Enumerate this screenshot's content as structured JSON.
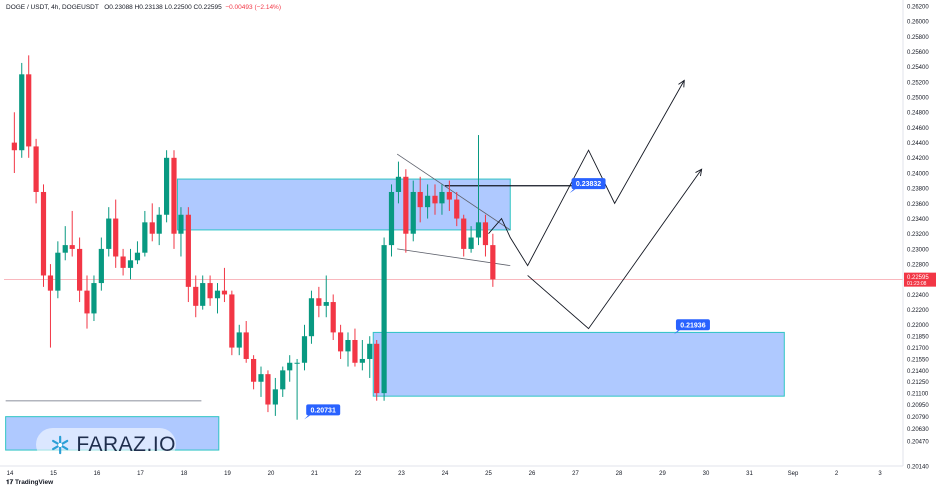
{
  "header": {
    "symbol": "DOGE / USDT, 4h, DOGEUSDT",
    "ohlc": "O0.23088  H0.23138  L0.22500  C0.22595",
    "change": "−0.00493 (−2.14%)"
  },
  "branding": {
    "tradingview": "TradingView",
    "watermark": "FARAZ.IO"
  },
  "colors": {
    "up": "#089981",
    "down": "#f23645",
    "zone_fill": "#6d9cff",
    "zone_border": "#2ec4c4",
    "label_bg": "#2962ff",
    "price_line": "#f7a1a8"
  },
  "chart_data": {
    "type": "candlestick",
    "ylim": [
      0.2014,
      0.262
    ],
    "y_ticks": [
      "0.26200",
      "0.26000",
      "0.25800",
      "0.25600",
      "0.25400",
      "0.25200",
      "0.25000",
      "0.24800",
      "0.24600",
      "0.24400",
      "0.24200",
      "0.24000",
      "0.23800",
      "0.23600",
      "0.23400",
      "0.23200",
      "0.23000",
      "0.22800",
      "0.22600",
      "0.22400",
      "0.22200",
      "0.22000",
      "0.21850",
      "0.21700",
      "0.21550",
      "0.21400",
      "0.21250",
      "0.21100",
      "0.20950",
      "0.20790",
      "0.20630",
      "0.20470",
      "0.20140"
    ],
    "x_labels": [
      "14",
      "15",
      "16",
      "17",
      "18",
      "19",
      "20",
      "21",
      "22",
      "23",
      "24",
      "25",
      "26",
      "27",
      "28",
      "29",
      "30",
      "31",
      "Sep",
      "2",
      "3"
    ],
    "current_price": {
      "value": "0.22595",
      "countdown": "01:23:08"
    },
    "candles": [
      {
        "d": 14.1,
        "o": 0.244,
        "h": 0.248,
        "l": 0.24,
        "c": 0.243
      },
      {
        "d": 14.27,
        "o": 0.243,
        "h": 0.2545,
        "l": 0.242,
        "c": 0.253
      },
      {
        "d": 14.43,
        "o": 0.253,
        "h": 0.2555,
        "l": 0.242,
        "c": 0.2435
      },
      {
        "d": 14.6,
        "o": 0.2435,
        "h": 0.2445,
        "l": 0.236,
        "c": 0.2375
      },
      {
        "d": 14.77,
        "o": 0.2375,
        "h": 0.2385,
        "l": 0.225,
        "c": 0.2265
      },
      {
        "d": 14.93,
        "o": 0.2265,
        "h": 0.228,
        "l": 0.217,
        "c": 0.2245
      },
      {
        "d": 15.1,
        "o": 0.2245,
        "h": 0.231,
        "l": 0.2235,
        "c": 0.2295
      },
      {
        "d": 15.27,
        "o": 0.2295,
        "h": 0.233,
        "l": 0.2285,
        "c": 0.2305
      },
      {
        "d": 15.43,
        "o": 0.2305,
        "h": 0.235,
        "l": 0.229,
        "c": 0.23
      },
      {
        "d": 15.6,
        "o": 0.23,
        "h": 0.2315,
        "l": 0.223,
        "c": 0.2245
      },
      {
        "d": 15.77,
        "o": 0.2245,
        "h": 0.2265,
        "l": 0.2195,
        "c": 0.2215
      },
      {
        "d": 15.93,
        "o": 0.2215,
        "h": 0.2265,
        "l": 0.2205,
        "c": 0.2255
      },
      {
        "d": 16.1,
        "o": 0.2255,
        "h": 0.2315,
        "l": 0.2245,
        "c": 0.23
      },
      {
        "d": 16.27,
        "o": 0.23,
        "h": 0.2355,
        "l": 0.229,
        "c": 0.234
      },
      {
        "d": 16.43,
        "o": 0.234,
        "h": 0.2365,
        "l": 0.2275,
        "c": 0.229
      },
      {
        "d": 16.6,
        "o": 0.229,
        "h": 0.23,
        "l": 0.2265,
        "c": 0.2275
      },
      {
        "d": 16.77,
        "o": 0.2275,
        "h": 0.23,
        "l": 0.226,
        "c": 0.2285
      },
      {
        "d": 16.93,
        "o": 0.2285,
        "h": 0.231,
        "l": 0.228,
        "c": 0.2295
      },
      {
        "d": 17.1,
        "o": 0.2295,
        "h": 0.235,
        "l": 0.229,
        "c": 0.2335
      },
      {
        "d": 17.27,
        "o": 0.2335,
        "h": 0.236,
        "l": 0.231,
        "c": 0.232
      },
      {
        "d": 17.43,
        "o": 0.232,
        "h": 0.2355,
        "l": 0.2305,
        "c": 0.2345
      },
      {
        "d": 17.6,
        "o": 0.2345,
        "h": 0.243,
        "l": 0.2335,
        "c": 0.242
      },
      {
        "d": 17.77,
        "o": 0.242,
        "h": 0.243,
        "l": 0.23,
        "c": 0.232
      },
      {
        "d": 17.93,
        "o": 0.232,
        "h": 0.2355,
        "l": 0.229,
        "c": 0.2345
      },
      {
        "d": 18.1,
        "o": 0.2345,
        "h": 0.2355,
        "l": 0.223,
        "c": 0.225
      },
      {
        "d": 18.27,
        "o": 0.225,
        "h": 0.2265,
        "l": 0.221,
        "c": 0.2225
      },
      {
        "d": 18.43,
        "o": 0.2225,
        "h": 0.2265,
        "l": 0.222,
        "c": 0.2255
      },
      {
        "d": 18.6,
        "o": 0.2255,
        "h": 0.2265,
        "l": 0.2225,
        "c": 0.2235
      },
      {
        "d": 18.77,
        "o": 0.2235,
        "h": 0.2255,
        "l": 0.2215,
        "c": 0.2245
      },
      {
        "d": 18.93,
        "o": 0.2245,
        "h": 0.2275,
        "l": 0.223,
        "c": 0.224
      },
      {
        "d": 19.1,
        "o": 0.224,
        "h": 0.2245,
        "l": 0.216,
        "c": 0.217
      },
      {
        "d": 19.27,
        "o": 0.217,
        "h": 0.22,
        "l": 0.216,
        "c": 0.219
      },
      {
        "d": 19.43,
        "o": 0.219,
        "h": 0.2205,
        "l": 0.215,
        "c": 0.2155
      },
      {
        "d": 19.6,
        "o": 0.2155,
        "h": 0.216,
        "l": 0.2115,
        "c": 0.2125
      },
      {
        "d": 19.77,
        "o": 0.2125,
        "h": 0.2145,
        "l": 0.2105,
        "c": 0.2135
      },
      {
        "d": 19.93,
        "o": 0.2135,
        "h": 0.214,
        "l": 0.2085,
        "c": 0.2095
      },
      {
        "d": 20.1,
        "o": 0.2095,
        "h": 0.213,
        "l": 0.208,
        "c": 0.2115
      },
      {
        "d": 20.27,
        "o": 0.2115,
        "h": 0.2145,
        "l": 0.2105,
        "c": 0.214
      },
      {
        "d": 20.43,
        "o": 0.214,
        "h": 0.216,
        "l": 0.2125,
        "c": 0.215
      },
      {
        "d": 20.6,
        "o": 0.215,
        "h": 0.2155,
        "l": 0.2075,
        "c": 0.215
      },
      {
        "d": 20.77,
        "o": 0.215,
        "h": 0.22,
        "l": 0.214,
        "c": 0.2185
      },
      {
        "d": 20.93,
        "o": 0.2185,
        "h": 0.2245,
        "l": 0.2175,
        "c": 0.2235
      },
      {
        "d": 21.1,
        "o": 0.2235,
        "h": 0.225,
        "l": 0.221,
        "c": 0.2225
      },
      {
        "d": 21.27,
        "o": 0.2225,
        "h": 0.2265,
        "l": 0.221,
        "c": 0.223
      },
      {
        "d": 21.43,
        "o": 0.223,
        "h": 0.224,
        "l": 0.218,
        "c": 0.219
      },
      {
        "d": 21.6,
        "o": 0.219,
        "h": 0.22,
        "l": 0.2155,
        "c": 0.2165
      },
      {
        "d": 21.77,
        "o": 0.2165,
        "h": 0.219,
        "l": 0.2145,
        "c": 0.218
      },
      {
        "d": 21.93,
        "o": 0.218,
        "h": 0.2195,
        "l": 0.2145,
        "c": 0.215
      },
      {
        "d": 22.1,
        "o": 0.215,
        "h": 0.218,
        "l": 0.214,
        "c": 0.2155
      },
      {
        "d": 22.27,
        "o": 0.2155,
        "h": 0.2185,
        "l": 0.213,
        "c": 0.2175
      },
      {
        "d": 22.43,
        "o": 0.2175,
        "h": 0.218,
        "l": 0.21,
        "c": 0.211
      },
      {
        "d": 22.6,
        "o": 0.211,
        "h": 0.2315,
        "l": 0.21,
        "c": 0.2305
      },
      {
        "d": 22.77,
        "o": 0.2305,
        "h": 0.2385,
        "l": 0.229,
        "c": 0.2375
      },
      {
        "d": 22.93,
        "o": 0.2375,
        "h": 0.2415,
        "l": 0.236,
        "c": 0.2395
      },
      {
        "d": 23.1,
        "o": 0.2395,
        "h": 0.2405,
        "l": 0.2295,
        "c": 0.232
      },
      {
        "d": 23.27,
        "o": 0.232,
        "h": 0.239,
        "l": 0.231,
        "c": 0.2375
      },
      {
        "d": 23.43,
        "o": 0.2375,
        "h": 0.2395,
        "l": 0.2335,
        "c": 0.2355
      },
      {
        "d": 23.6,
        "o": 0.2355,
        "h": 0.2385,
        "l": 0.234,
        "c": 0.237
      },
      {
        "d": 23.77,
        "o": 0.237,
        "h": 0.2385,
        "l": 0.2345,
        "c": 0.236
      },
      {
        "d": 23.93,
        "o": 0.236,
        "h": 0.2385,
        "l": 0.2345,
        "c": 0.2375
      },
      {
        "d": 24.1,
        "o": 0.2375,
        "h": 0.239,
        "l": 0.235,
        "c": 0.2365
      },
      {
        "d": 24.27,
        "o": 0.2365,
        "h": 0.2375,
        "l": 0.233,
        "c": 0.234
      },
      {
        "d": 24.43,
        "o": 0.234,
        "h": 0.2345,
        "l": 0.229,
        "c": 0.23
      },
      {
        "d": 24.6,
        "o": 0.23,
        "h": 0.233,
        "l": 0.2295,
        "c": 0.2315
      },
      {
        "d": 24.77,
        "o": 0.2315,
        "h": 0.245,
        "l": 0.2305,
        "c": 0.2335
      },
      {
        "d": 24.93,
        "o": 0.2335,
        "h": 0.2345,
        "l": 0.229,
        "c": 0.2305
      },
      {
        "d": 25.1,
        "o": 0.2305,
        "h": 0.232,
        "l": 0.225,
        "c": 0.226
      }
    ],
    "annotations": [
      {
        "text": "0.23832",
        "d": 27.3,
        "price": 0.2386
      },
      {
        "text": "0.21936",
        "d": 29.7,
        "price": 0.22
      },
      {
        "text": "0.20731",
        "d": 21.2,
        "price": 0.2088
      }
    ],
    "zones": [
      {
        "d0": 17.85,
        "d1": 25.5,
        "top": 0.2392,
        "bottom": 0.2325
      },
      {
        "d0": 22.35,
        "d1": 31.8,
        "top": 0.219,
        "bottom": 0.2106
      },
      {
        "d0": 13.9,
        "d1": 18.8,
        "top": 0.2079,
        "bottom": 0.2035
      }
    ],
    "wedge": {
      "upper": [
        [
          22.9,
          0.2425
        ],
        [
          25.5,
          0.2325
        ]
      ],
      "lower": [
        [
          22.9,
          0.23
        ],
        [
          25.5,
          0.2278
        ]
      ]
    },
    "level_line": {
      "d0": 24.0,
      "d1": 27.5,
      "price": 0.23832
    },
    "support_line": {
      "d0": 13.9,
      "d1": 18.4,
      "price": 0.21
    },
    "projections": [
      [
        [
          25.0,
          0.232
        ],
        [
          25.3,
          0.234
        ],
        [
          25.5,
          0.2315
        ],
        [
          25.9,
          0.2278
        ],
        [
          27.3,
          0.243
        ],
        [
          27.9,
          0.236
        ],
        [
          29.5,
          0.2522
        ]
      ],
      [
        [
          25.9,
          0.2265
        ],
        [
          27.3,
          0.2195
        ],
        [
          29.9,
          0.2405
        ]
      ]
    ]
  }
}
